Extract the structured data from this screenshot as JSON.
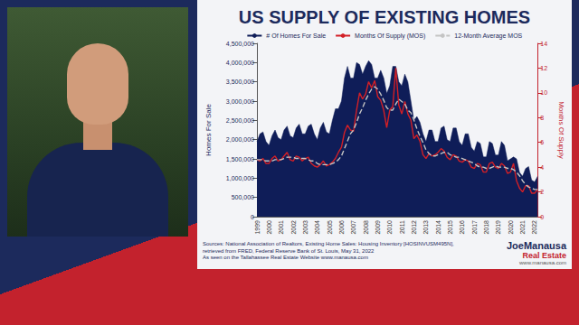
{
  "chart_data": {
    "type": "line",
    "title": "US SUPPLY OF EXISTING HOMES",
    "y_label": "Homes For Sale",
    "y2_label": "Months Of Supply",
    "annotations": [
      "Sources: National Association of Realtors, Existing Home Sales: Housing Inventory [HOSINVUSM495N], retrieved from FRED, Federal Reserve Bank of St. Louis, May 31, 2022",
      "As seen on the Tallahassee Real Estate Website www.manausa.com"
    ],
    "categories": [
      "1999",
      null,
      null,
      null,
      "2000",
      null,
      null,
      null,
      "2001",
      null,
      null,
      null,
      "2002",
      null,
      null,
      null,
      "2003",
      null,
      null,
      null,
      "2004",
      null,
      null,
      null,
      "2005",
      null,
      null,
      null,
      "2006",
      null,
      null,
      null,
      "2007",
      null,
      null,
      null,
      "2008",
      null,
      null,
      null,
      "2009",
      null,
      null,
      null,
      "2010",
      null,
      null,
      null,
      "2011",
      null,
      null,
      null,
      "2012",
      null,
      null,
      null,
      "2013",
      null,
      null,
      null,
      "2014",
      null,
      null,
      null,
      "2015",
      null,
      null,
      null,
      "2016",
      null,
      null,
      null,
      "2017",
      null,
      null,
      null,
      "2018",
      null,
      null,
      null,
      "2019",
      null,
      null,
      null,
      "2020",
      null,
      null,
      null,
      "2021",
      null,
      null,
      null,
      "2022",
      null
    ],
    "series": [
      {
        "name": "# Of Homes For Sale",
        "type": "area",
        "color": "#0f1d58",
        "values": [
          1950000,
          2150000,
          2200000,
          1950000,
          1850000,
          2100000,
          2250000,
          2050000,
          2000000,
          2250000,
          2350000,
          2100000,
          2050000,
          2300000,
          2400000,
          2150000,
          2150000,
          2350000,
          2400000,
          2150000,
          2000000,
          2300000,
          2450000,
          2200000,
          2150000,
          2500000,
          2800000,
          2800000,
          3000000,
          3600000,
          3900000,
          3600000,
          3600000,
          4000000,
          3950000,
          3700000,
          3900000,
          4050000,
          3950000,
          3600000,
          3600000,
          3800000,
          3600000,
          3200000,
          3400000,
          3900000,
          3900000,
          3500000,
          3400000,
          3700000,
          3500000,
          3000000,
          2500000,
          2600000,
          2450000,
          2150000,
          1950000,
          2250000,
          2250000,
          1950000,
          1950000,
          2300000,
          2350000,
          2000000,
          1950000,
          2300000,
          2300000,
          1950000,
          1850000,
          2150000,
          2150000,
          1800000,
          1700000,
          1950000,
          1900000,
          1550000,
          1550000,
          1950000,
          1900000,
          1600000,
          1600000,
          1950000,
          1850000,
          1450000,
          1500000,
          1550000,
          1500000,
          1150000,
          1050000,
          1250000,
          1300000,
          950000,
          900000,
          1050000
        ]
      },
      {
        "name": "Months Of Supply (MOS)",
        "type": "line",
        "color": "#d21f26",
        "axis": "y2",
        "values": [
          4.6,
          4.5,
          4.7,
          4.3,
          4.3,
          4.7,
          4.9,
          4.5,
          4.6,
          4.9,
          5.2,
          4.6,
          4.5,
          4.9,
          4.8,
          4.5,
          4.7,
          4.8,
          4.3,
          4.1,
          4.0,
          4.2,
          4.5,
          4.1,
          4.2,
          4.4,
          4.7,
          5.2,
          5.6,
          6.8,
          7.4,
          7.0,
          6.9,
          8.6,
          10.0,
          9.5,
          9.9,
          10.9,
          10.4,
          11.0,
          9.7,
          9.4,
          8.6,
          7.2,
          8.6,
          8.9,
          12.0,
          9.0,
          8.3,
          9.3,
          8.3,
          7.8,
          6.3,
          6.6,
          6.1,
          5.0,
          4.7,
          5.1,
          4.9,
          5.0,
          5.2,
          5.5,
          5.3,
          4.8,
          4.6,
          5.0,
          4.9,
          4.5,
          4.4,
          4.6,
          4.5,
          4.0,
          3.9,
          4.3,
          4.2,
          3.6,
          3.6,
          4.3,
          4.4,
          4.0,
          3.9,
          4.3,
          4.1,
          3.5,
          3.6,
          4.3,
          2.9,
          2.3,
          2.0,
          2.5,
          2.5,
          1.9,
          1.9,
          2.2
        ]
      },
      {
        "name": "12-Month Average MOS",
        "type": "line",
        "line_style": "dashed",
        "color": "#c4c4c4",
        "axis": "y2",
        "values": [
          4.6,
          4.6,
          4.6,
          4.5,
          4.5,
          4.5,
          4.6,
          4.6,
          4.6,
          4.7,
          4.8,
          4.8,
          4.8,
          4.7,
          4.7,
          4.7,
          4.7,
          4.6,
          4.5,
          4.5,
          4.3,
          4.2,
          4.2,
          4.2,
          4.2,
          4.3,
          4.4,
          4.6,
          4.9,
          5.5,
          6.1,
          6.7,
          7.0,
          7.6,
          8.3,
          8.8,
          9.4,
          9.9,
          10.3,
          10.5,
          10.3,
          9.9,
          9.4,
          8.8,
          8.6,
          8.6,
          9.1,
          9.5,
          9.3,
          9.1,
          8.6,
          8.4,
          7.8,
          7.1,
          6.5,
          6.0,
          5.4,
          5.1,
          4.9,
          4.9,
          5.0,
          5.1,
          5.2,
          5.2,
          5.0,
          4.9,
          4.8,
          4.8,
          4.7,
          4.6,
          4.5,
          4.4,
          4.3,
          4.1,
          4.0,
          4.0,
          3.9,
          3.9,
          4.0,
          4.1,
          4.0,
          4.0,
          4.0,
          3.9,
          3.9,
          3.8,
          3.6,
          3.3,
          2.9,
          2.6,
          2.4,
          2.3,
          2.2,
          2.2
        ]
      }
    ],
    "ylim": [
      0,
      4500000
    ],
    "yticks": [
      0,
      {
        "value": 500000,
        "label": "500,000"
      },
      {
        "value": 1000000,
        "label": "1,000,000"
      },
      {
        "value": 1500000,
        "label": "1,500,000"
      },
      {
        "value": 2000000,
        "label": "2,000,000"
      },
      {
        "value": 2500000,
        "label": "2,500,000"
      },
      {
        "value": 3000000,
        "label": "3,000,000"
      },
      {
        "value": 3500000,
        "label": "3,500,000"
      },
      {
        "value": 4000000,
        "label": "4,000,000"
      },
      {
        "value": 4500000,
        "label": "4,500,000"
      }
    ],
    "y2lim": [
      0,
      14
    ],
    "y2ticks": [
      0,
      2,
      4,
      6,
      8,
      10,
      12,
      14
    ],
    "grid": false,
    "legend": "top"
  },
  "logo": {
    "name": "JoeManausa",
    "subtitle": "Real Estate",
    "url": "www.manausa.com"
  }
}
